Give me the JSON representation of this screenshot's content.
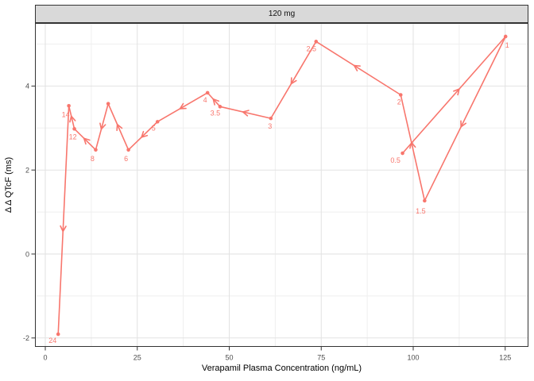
{
  "chart_data": {
    "type": "line",
    "title": "120 mg",
    "xlabel": "Verapamil Plasma Concentration (ng/mL)",
    "ylabel": "Δ Δ QTcF (ms)",
    "x_ticks": [
      0,
      25,
      50,
      75,
      100,
      125
    ],
    "y_ticks": [
      -2,
      0,
      2,
      4
    ],
    "xlim": [
      -2.8,
      131.3
    ],
    "ylim": [
      -2.2,
      5.5
    ],
    "grid": "major+minor",
    "legend": "none",
    "path_style": "time-ordered hysteresis loop with mid-segment arrows",
    "series": [
      {
        "name": "120 mg",
        "color": "#F8766D",
        "points": [
          {
            "label": "0.5",
            "x": 97.1,
            "y": 2.4,
            "label_offset": [
              -9,
              9
            ]
          },
          {
            "label": "1",
            "x": 125.1,
            "y": 5.18,
            "label_offset": [
              2,
              11
            ]
          },
          {
            "label": "1.5",
            "x": 103.1,
            "y": 1.27,
            "label_offset": [
              -5,
              13
            ]
          },
          {
            "label": "2",
            "x": 96.6,
            "y": 3.79,
            "label_offset": [
              -2,
              9
            ]
          },
          {
            "label": "2.5",
            "x": 73.6,
            "y": 5.06,
            "label_offset": [
              -6,
              9
            ]
          },
          {
            "label": "3",
            "x": 61.3,
            "y": 3.23,
            "label_offset": [
              -1,
              10
            ]
          },
          {
            "label": "3.5",
            "x": 47.5,
            "y": 3.51,
            "label_offset": [
              -6,
              8
            ]
          },
          {
            "label": "4",
            "x": 44.1,
            "y": 3.84,
            "label_offset": [
              -3,
              9
            ]
          },
          {
            "label": "5",
            "x": 30.5,
            "y": 3.15,
            "label_offset": [
              -5,
              8
            ]
          },
          {
            "label": "6",
            "x": 22.6,
            "y": 2.48,
            "label_offset": [
              -3,
              11
            ]
          },
          {
            "label": "",
            "x": 17.1,
            "y": 3.58,
            "label_offset": [
              0,
              0
            ]
          },
          {
            "label": "8",
            "x": 13.7,
            "y": 2.48,
            "label_offset": [
              -4,
              11
            ]
          },
          {
            "label": "12",
            "x": 7.9,
            "y": 2.98,
            "label_offset": [
              -2,
              10
            ]
          },
          {
            "label": "14",
            "x": 6.4,
            "y": 3.53,
            "label_offset": [
              -4,
              11
            ]
          },
          {
            "label": "24",
            "x": 3.5,
            "y": -1.91,
            "label_offset": [
              -7,
              8
            ]
          }
        ]
      }
    ]
  },
  "colors": {
    "series": "#F8766D",
    "strip_fill": "#D9D9D9",
    "border": "#333333",
    "grid_major": "#E2E2E2",
    "grid_minor": "#EFEFEF",
    "tick_text": "#4D4D4D",
    "tick_mark": "#333333"
  }
}
